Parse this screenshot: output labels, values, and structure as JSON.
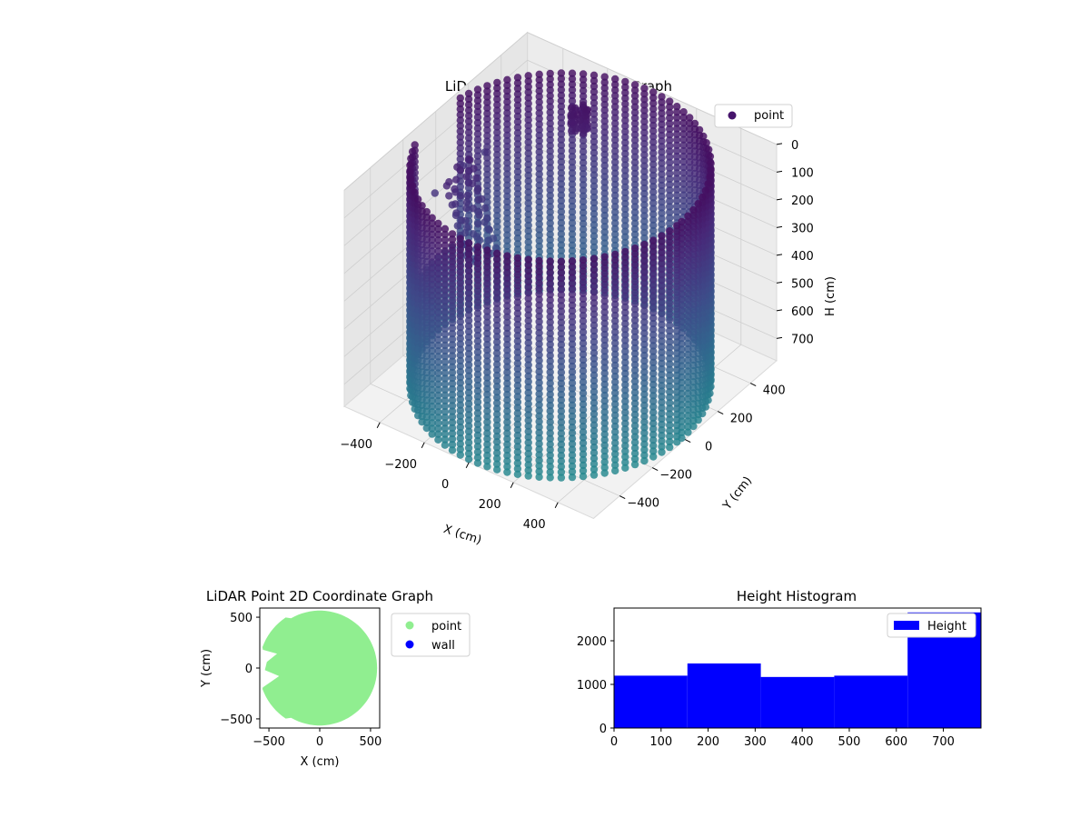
{
  "chart_data": [
    {
      "type": "scatter",
      "title": "LiDAR Point 3D Coordinate Graph",
      "projection": "3d",
      "xlabel": "X (cm)",
      "ylabel": "Y (cm)",
      "zlabel": "H (cm)",
      "x_ticks": [
        "−400",
        "−200",
        "0",
        "200",
        "400"
      ],
      "y_ticks": [
        "−400",
        "−200",
        "0",
        "200",
        "400"
      ],
      "z_ticks": [
        "0",
        "100",
        "200",
        "300",
        "400",
        "500",
        "600",
        "700"
      ],
      "xlim": [
        -560,
        560
      ],
      "ylim": [
        -560,
        560
      ],
      "zlim": [
        0,
        780
      ],
      "z_inverted": true,
      "colormap": "viridis",
      "legend": {
        "label": "point",
        "position": "top-right"
      },
      "shape": "cylindrical wall of points, radius ~550 cm, heights 0–780 cm, with a gap and interior points near x=-500,y=-100",
      "outlier_points": [
        {
          "x": -560,
          "y": 300,
          "h": 300
        },
        {
          "x": -540,
          "y": 140,
          "h": 260
        },
        {
          "x": -520,
          "y": -60,
          "h": 250
        }
      ],
      "grid": true
    },
    {
      "type": "scatter",
      "title": "LiDAR Point 2D Coordinate Graph",
      "xlabel": "X (cm)",
      "ylabel": "Y (cm)",
      "x_ticks": [
        "−500",
        "0",
        "500"
      ],
      "y_ticks": [
        "−500",
        "0",
        "500"
      ],
      "xlim": [
        -590,
        590
      ],
      "ylim": [
        -590,
        590
      ],
      "series": [
        {
          "name": "point",
          "color": "#90ee90",
          "shape": "filled disc radius ~560 cm with a wedge notch on the left (x from -560 to -400, y from -180 to 160)"
        },
        {
          "name": "wall",
          "color": "#0000ff",
          "points": []
        }
      ],
      "legend": {
        "position": "outside-right"
      }
    },
    {
      "type": "bar",
      "title": "Height Histogram",
      "bin_edges": [
        0,
        156,
        312,
        468,
        624,
        780
      ],
      "values": [
        1200,
        1480,
        1170,
        1200,
        2650
      ],
      "x_ticks": [
        "0",
        "100",
        "200",
        "300",
        "400",
        "500",
        "600",
        "700"
      ],
      "y_ticks": [
        "0",
        "1000",
        "2000"
      ],
      "xlim": [
        0,
        780
      ],
      "ylim": [
        0,
        2750
      ],
      "color": "#0000ff",
      "series": [
        {
          "name": "Height"
        }
      ],
      "legend": {
        "position": "top-right"
      }
    }
  ]
}
